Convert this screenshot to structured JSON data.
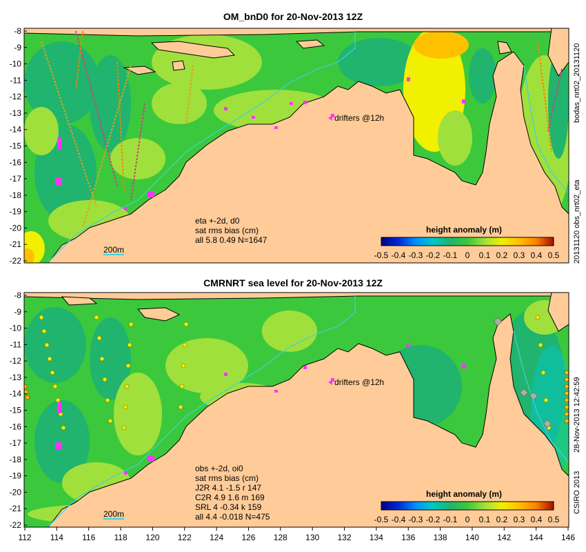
{
  "panels": [
    {
      "title": "OM_bnD0 for 20-Nov-2013 12Z",
      "drifters_label": "drifters @12h",
      "scale_label": "200m",
      "stats": [
        "eta +-2d, d0",
        "sat rms bias (cm)",
        "all 5.8 0.49 N=1647"
      ],
      "side_labels": [
        "bodas_nrt02_20131120",
        "20131120 obs_nrt02_eta"
      ],
      "colorbar_title": "height anomaly (m)"
    },
    {
      "title": "CMRNRT sea level  for 20-Nov-2013 12Z",
      "drifters_label": "drifters @12h",
      "scale_label": "200m",
      "stats": [
        "obs +-2d, oi0",
        "sat rms bias (cm)",
        "J2R  4.1 -1.5 r 147",
        "C2R  4.9 1.6 m 169",
        "SRL   4 -0.34 k 159",
        "all   4.4 -0.018 N=475"
      ],
      "side_labels": [
        "28-Nov-2013 12:42:59",
        "CSIRO 2013"
      ],
      "colorbar_title": "height anomaly (m)"
    }
  ],
  "y_ticks": [
    "-8",
    "-9",
    "-10",
    "-11",
    "-12",
    "-13",
    "-14",
    "-15",
    "-16",
    "-17",
    "-18",
    "-19",
    "-20",
    "-21",
    "-22"
  ],
  "x_ticks": [
    "112",
    "114",
    "116",
    "118",
    "120",
    "122",
    "124",
    "126",
    "128",
    "130",
    "132",
    "134",
    "136",
    "138",
    "140",
    "142",
    "144",
    "146"
  ],
  "colorbar_ticks": [
    "-0.5",
    "-0.4",
    "-0.3",
    "-0.2",
    "-0.1",
    "0",
    "0.1",
    "0.2",
    "0.3",
    "0.4",
    "0.5"
  ],
  "colorbar_colors": [
    "#00007f",
    "#0028d8",
    "#0090ff",
    "#00c8c8",
    "#20b46e",
    "#3cc83c",
    "#a0e03c",
    "#f0f000",
    "#ffc000",
    "#ff8000",
    "#e04000",
    "#a01000"
  ],
  "colors": {
    "land": "#ffcc99",
    "ocean_green": "#3cc83c",
    "drifter": "#ff33ff"
  }
}
